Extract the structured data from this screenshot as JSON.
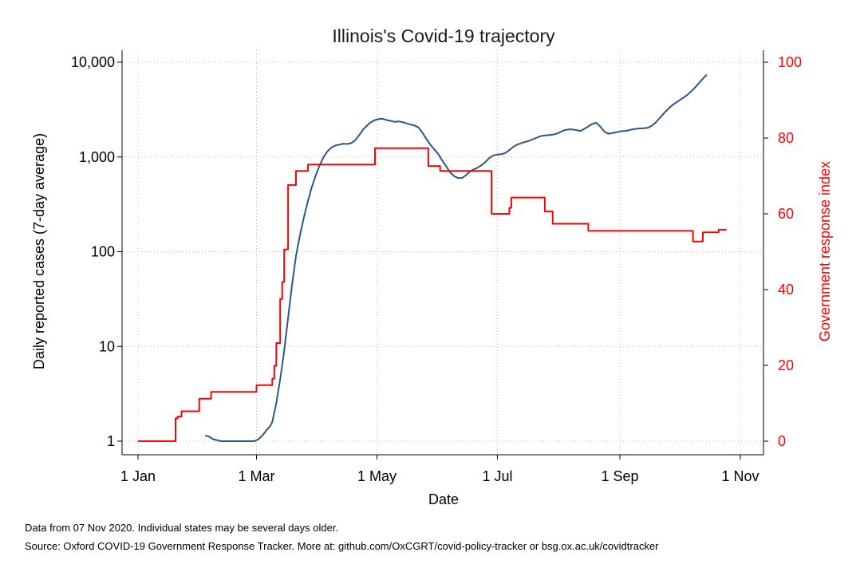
{
  "chart_data": {
    "type": "line",
    "title": "Illinois's Covid-19 trajectory",
    "xlabel": "Date",
    "ylabel_left": "Daily reported cases (7-day average)",
    "ylabel_right": "Government response index",
    "x_range_days": [
      0,
      315
    ],
    "x_ticks": [
      {
        "label": "1 Jan",
        "day": 0
      },
      {
        "label": "1 Mar",
        "day": 60
      },
      {
        "label": "1 May",
        "day": 121
      },
      {
        "label": "1 Jul",
        "day": 182
      },
      {
        "label": "1 Sep",
        "day": 244
      },
      {
        "label": "1 Nov",
        "day": 305
      }
    ],
    "y_left": {
      "scale": "log",
      "range": [
        1,
        10000
      ],
      "ticks": [
        1,
        10,
        100,
        1000,
        10000
      ],
      "tick_labels": [
        "1",
        "10",
        "100",
        "1,000",
        "10,000"
      ]
    },
    "y_right": {
      "scale": "linear",
      "range": [
        0,
        100
      ],
      "ticks": [
        0,
        20,
        40,
        60,
        80,
        100
      ],
      "tick_labels": [
        "0",
        "20",
        "40",
        "60",
        "80",
        "100"
      ]
    },
    "grid": true,
    "series": [
      {
        "axis": "left",
        "color": "#2a5783",
        "points": [
          [
            34,
            1.15
          ],
          [
            36,
            1.12
          ],
          [
            38,
            1.05
          ],
          [
            42,
            1
          ],
          [
            50,
            1
          ],
          [
            59,
            1
          ],
          [
            61,
            1.05
          ],
          [
            63,
            1.15
          ],
          [
            65,
            1.3
          ],
          [
            67,
            1.45
          ],
          [
            68,
            1.6
          ],
          [
            70,
            2.5
          ],
          [
            72,
            4.5
          ],
          [
            74,
            9
          ],
          [
            76,
            20
          ],
          [
            78,
            45
          ],
          [
            80,
            90
          ],
          [
            82,
            150
          ],
          [
            84,
            230
          ],
          [
            86,
            340
          ],
          [
            88,
            480
          ],
          [
            90,
            640
          ],
          [
            92,
            820
          ],
          [
            94,
            1000
          ],
          [
            96,
            1150
          ],
          [
            98,
            1260
          ],
          [
            100,
            1320
          ],
          [
            102,
            1350
          ],
          [
            104,
            1380
          ],
          [
            106,
            1370
          ],
          [
            108,
            1400
          ],
          [
            110,
            1500
          ],
          [
            112,
            1700
          ],
          [
            114,
            1950
          ],
          [
            116,
            2150
          ],
          [
            118,
            2330
          ],
          [
            120,
            2450
          ],
          [
            122,
            2520
          ],
          [
            124,
            2530
          ],
          [
            126,
            2450
          ],
          [
            128,
            2400
          ],
          [
            130,
            2350
          ],
          [
            132,
            2370
          ],
          [
            134,
            2330
          ],
          [
            136,
            2260
          ],
          [
            138,
            2200
          ],
          [
            140,
            2150
          ],
          [
            142,
            2050
          ],
          [
            144,
            1800
          ],
          [
            146,
            1550
          ],
          [
            148,
            1350
          ],
          [
            150,
            1200
          ],
          [
            152,
            1080
          ],
          [
            154,
            920
          ],
          [
            156,
            800
          ],
          [
            158,
            690
          ],
          [
            160,
            630
          ],
          [
            162,
            600
          ],
          [
            164,
            600
          ],
          [
            166,
            640
          ],
          [
            168,
            700
          ],
          [
            170,
            740
          ],
          [
            172,
            770
          ],
          [
            174,
            820
          ],
          [
            176,
            890
          ],
          [
            178,
            980
          ],
          [
            180,
            1040
          ],
          [
            182,
            1060
          ],
          [
            184,
            1070
          ],
          [
            186,
            1100
          ],
          [
            188,
            1180
          ],
          [
            190,
            1280
          ],
          [
            192,
            1350
          ],
          [
            194,
            1400
          ],
          [
            196,
            1440
          ],
          [
            198,
            1480
          ],
          [
            200,
            1540
          ],
          [
            202,
            1600
          ],
          [
            204,
            1660
          ],
          [
            206,
            1690
          ],
          [
            208,
            1700
          ],
          [
            210,
            1720
          ],
          [
            212,
            1760
          ],
          [
            214,
            1840
          ],
          [
            216,
            1920
          ],
          [
            218,
            1950
          ],
          [
            220,
            1950
          ],
          [
            222,
            1920
          ],
          [
            224,
            1880
          ],
          [
            226,
            1980
          ],
          [
            228,
            2100
          ],
          [
            230,
            2230
          ],
          [
            232,
            2300
          ],
          [
            234,
            2100
          ],
          [
            236,
            1870
          ],
          [
            238,
            1760
          ],
          [
            240,
            1780
          ],
          [
            242,
            1820
          ],
          [
            244,
            1860
          ],
          [
            246,
            1880
          ],
          [
            248,
            1900
          ],
          [
            250,
            1950
          ],
          [
            252,
            1980
          ],
          [
            254,
            2000
          ],
          [
            256,
            2010
          ],
          [
            258,
            2030
          ],
          [
            260,
            2120
          ],
          [
            262,
            2300
          ],
          [
            264,
            2550
          ],
          [
            266,
            2850
          ],
          [
            268,
            3150
          ],
          [
            270,
            3450
          ],
          [
            272,
            3700
          ],
          [
            274,
            3950
          ],
          [
            276,
            4200
          ],
          [
            278,
            4500
          ],
          [
            280,
            4900
          ],
          [
            282,
            5400
          ],
          [
            284,
            6000
          ],
          [
            286,
            6700
          ],
          [
            288,
            7400
          ]
        ]
      },
      {
        "axis": "right",
        "color": "#ff0000",
        "step": true,
        "points": [
          [
            0,
            0
          ],
          [
            19,
            0
          ],
          [
            19,
            6
          ],
          [
            20,
            6
          ],
          [
            20,
            6.5
          ],
          [
            22,
            6.5
          ],
          [
            22,
            7.9
          ],
          [
            31,
            7.9
          ],
          [
            31,
            11.2
          ],
          [
            37,
            11.2
          ],
          [
            37,
            13
          ],
          [
            60,
            13
          ],
          [
            60,
            14.8
          ],
          [
            68,
            14.8
          ],
          [
            68,
            16.5
          ],
          [
            69,
            16.5
          ],
          [
            69,
            19.9
          ],
          [
            70,
            19.9
          ],
          [
            70,
            25.9
          ],
          [
            72,
            25.9
          ],
          [
            72,
            37.5
          ],
          [
            73,
            37.5
          ],
          [
            73,
            42
          ],
          [
            74,
            42
          ],
          [
            74,
            50.6
          ],
          [
            76,
            50.6
          ],
          [
            76,
            67.6
          ],
          [
            80,
            67.6
          ],
          [
            80,
            71.3
          ],
          [
            86,
            71.3
          ],
          [
            86,
            73
          ],
          [
            120,
            73
          ],
          [
            120,
            77.3
          ],
          [
            147,
            77.3
          ],
          [
            147,
            72.6
          ],
          [
            153,
            72.6
          ],
          [
            153,
            71.3
          ],
          [
            179,
            71.3
          ],
          [
            179,
            60
          ],
          [
            188,
            60
          ],
          [
            188,
            61.6
          ],
          [
            189,
            61.6
          ],
          [
            189,
            64.3
          ],
          [
            206,
            64.3
          ],
          [
            206,
            60.6
          ],
          [
            210,
            60.6
          ],
          [
            210,
            57.4
          ],
          [
            228,
            57.4
          ],
          [
            228,
            55.5
          ],
          [
            281,
            55.5
          ],
          [
            281,
            52.7
          ],
          [
            286,
            52.7
          ],
          [
            286,
            55.1
          ],
          [
            294,
            55.1
          ],
          [
            294,
            55.8
          ],
          [
            298,
            55.8
          ]
        ]
      }
    ]
  },
  "notes": {
    "line1": "Data from 07 Nov 2020. Individual states may be several days older.",
    "line2": "Source: Oxford COVID-19 Government Response Tracker. More at: github.com/OxCGRT/covid-policy-tracker or bsg.ox.ac.uk/covidtracker"
  }
}
